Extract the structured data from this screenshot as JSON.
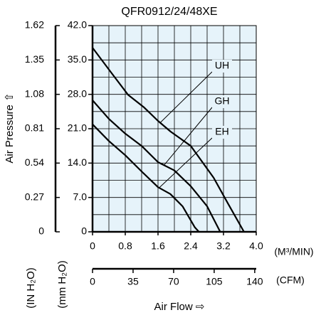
{
  "chart_data": {
    "type": "line",
    "title": "QFR0912/24/48XE",
    "y_label": "Air Pressure ⇧",
    "y_unit_label": "(mm H₂O)",
    "y2_unit_label": "(IN H₂O)",
    "x_label": "Air Flow ⇨",
    "x_unit_label": "(M³/MIN)",
    "x2_unit_label": "(CFM)",
    "xlim": [
      0,
      4.0
    ],
    "xticks": [
      0,
      0.8,
      1.6,
      2.4,
      3.2,
      {
        "value": 4,
        "label": "4.0"
      }
    ],
    "x2lim": [
      0,
      141.3
    ],
    "x2ticks": [
      0,
      35,
      70,
      105,
      140
    ],
    "ylim": [
      0,
      42
    ],
    "yticks": [
      0,
      {
        "value": 7,
        "label": "7.0"
      },
      {
        "value": 14,
        "label": "14.0"
      },
      {
        "value": 21,
        "label": "21.0"
      },
      {
        "value": 28,
        "label": "28.0"
      },
      {
        "value": 35,
        "label": "35.0"
      },
      {
        "value": 42,
        "label": "42.0"
      }
    ],
    "y2lim": [
      0,
      1.62
    ],
    "y2ticks": [
      0,
      0.27,
      0.54,
      0.81,
      1.08,
      1.35,
      1.62
    ],
    "xminorticks": [
      0.4,
      1.2,
      2.0,
      2.8,
      3.6
    ],
    "yminorticks": [
      3.5,
      10.5,
      17.5,
      24.5,
      31.5,
      38.5
    ],
    "grid": true,
    "background": "#e6f3fa",
    "series": [
      {
        "name": "UH",
        "color": "#000000",
        "x": [
          0,
          0.45,
          0.87,
          1.25,
          1.6,
          1.91,
          2.4,
          2.96,
          3.3,
          3.7
        ],
        "values": [
          37.5,
          32.5,
          27.9,
          25.4,
          22.6,
          20.4,
          17.5,
          11,
          5.9,
          0
        ]
      },
      {
        "name": "GH",
        "color": "#000000",
        "x": [
          0,
          0.4,
          0.8,
          1.2,
          1.6,
          2.0,
          2.4,
          2.8,
          3.12
        ],
        "values": [
          26.8,
          23,
          20,
          17.5,
          14.2,
          12.5,
          9.3,
          5.2,
          0
        ]
      },
      {
        "name": "EH",
        "color": "#000000",
        "x": [
          0,
          0.4,
          0.8,
          1.2,
          1.6,
          1.9,
          2.2,
          2.5,
          2.6
        ],
        "values": [
          21.9,
          18.5,
          15.6,
          12.3,
          9.1,
          7.7,
          5.2,
          0.9,
          0
        ]
      }
    ]
  }
}
